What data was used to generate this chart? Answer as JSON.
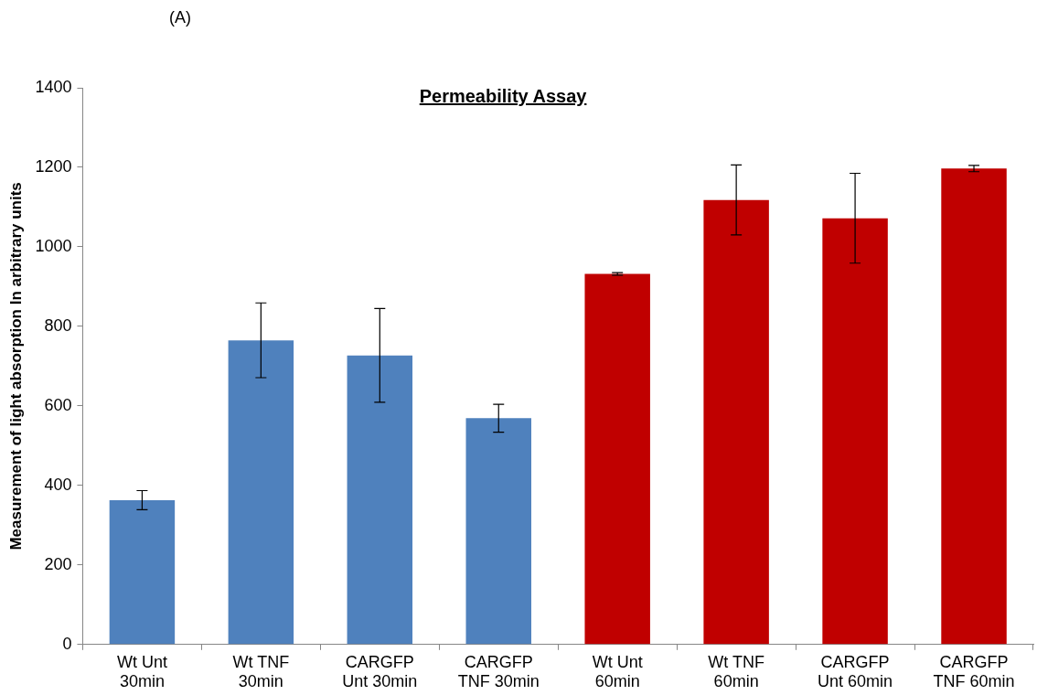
{
  "chart_data": {
    "type": "bar",
    "title": "Permeability Assay",
    "ylabel": "Measurement of light absorption In arbitrary units",
    "annotations": [
      "(A)"
    ],
    "categories": [
      "Wt Unt 30min",
      "Wt TNF 30min",
      "CARGFP Unt 30min",
      "CARGFP TNF 30min",
      "Wt Unt 60min",
      "Wt TNF 60min",
      "CARGFP Unt 60min",
      "CARGFP TNF 60min"
    ],
    "values": [
      363,
      765,
      727,
      569,
      932,
      1118,
      1072,
      1197
    ],
    "errors": [
      24,
      94,
      118,
      35,
      3,
      88,
      113,
      8
    ],
    "colors": [
      "#4f81bd",
      "#4f81bd",
      "#4f81bd",
      "#4f81bd",
      "#c00000",
      "#c00000",
      "#c00000",
      "#c00000"
    ],
    "ylim": [
      0,
      1400
    ],
    "yticks": [
      0,
      200,
      400,
      600,
      800,
      1000,
      1200,
      1400
    ],
    "grid": false,
    "legend": false
  }
}
